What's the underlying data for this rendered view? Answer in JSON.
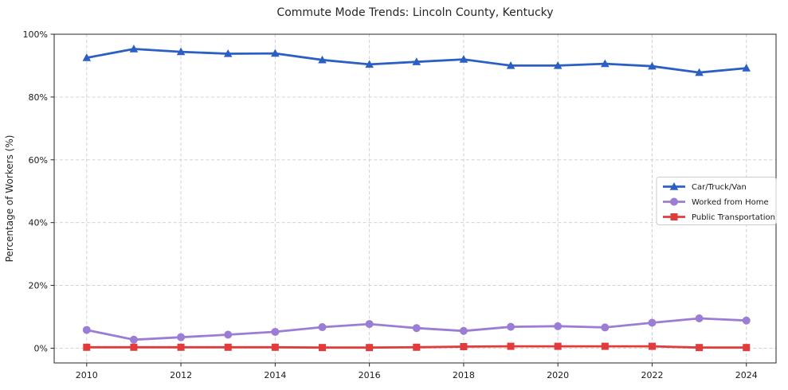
{
  "chart_data": {
    "type": "line",
    "title": "Commute Mode Trends: Lincoln County, Kentucky",
    "xlabel": "",
    "ylabel": "Percentage of Workers (%)",
    "x": [
      2010,
      2011,
      2012,
      2013,
      2014,
      2015,
      2016,
      2017,
      2018,
      2019,
      2020,
      2021,
      2022,
      2023,
      2024
    ],
    "series": [
      {
        "name": "Car/Truck/Van",
        "color": "#2c5fc4",
        "marker": "triangle",
        "values": [
          92.5,
          95.3,
          94.4,
          93.8,
          93.9,
          91.8,
          90.4,
          91.2,
          92.0,
          90.0,
          90.0,
          90.6,
          89.8,
          87.8,
          89.2
        ]
      },
      {
        "name": "Worked from Home",
        "color": "#9b7dd6",
        "marker": "circle",
        "values": [
          5.8,
          2.7,
          3.5,
          4.3,
          5.2,
          6.7,
          7.7,
          6.4,
          5.5,
          6.8,
          7.0,
          6.6,
          8.1,
          9.5,
          8.8
        ]
      },
      {
        "name": "Public Transportation",
        "color": "#e23b3b",
        "marker": "square",
        "values": [
          0.3,
          0.3,
          0.3,
          0.3,
          0.3,
          0.2,
          0.2,
          0.3,
          0.5,
          0.6,
          0.6,
          0.6,
          0.6,
          0.2,
          0.2
        ]
      }
    ],
    "xlim": [
      2009.31,
      2024.63
    ],
    "ylim": [
      -4.7,
      100
    ],
    "xticks": [
      2010,
      2012,
      2014,
      2016,
      2018,
      2020,
      2022,
      2024
    ],
    "xtick_labels": [
      "2010",
      "2012",
      "2014",
      "2016",
      "2018",
      "2020",
      "2022",
      "2024"
    ],
    "yticks": [
      0,
      20,
      40,
      60,
      80,
      100
    ],
    "ytick_labels": [
      "0%",
      "20%",
      "40%",
      "60%",
      "80%",
      "100%"
    ],
    "grid": true,
    "legend_position": "center right"
  },
  "style": {
    "grid_color": "#cccccc",
    "axis_color": "#262626",
    "text_color": "#1a1a1a",
    "background_color": "#ffffff"
  }
}
